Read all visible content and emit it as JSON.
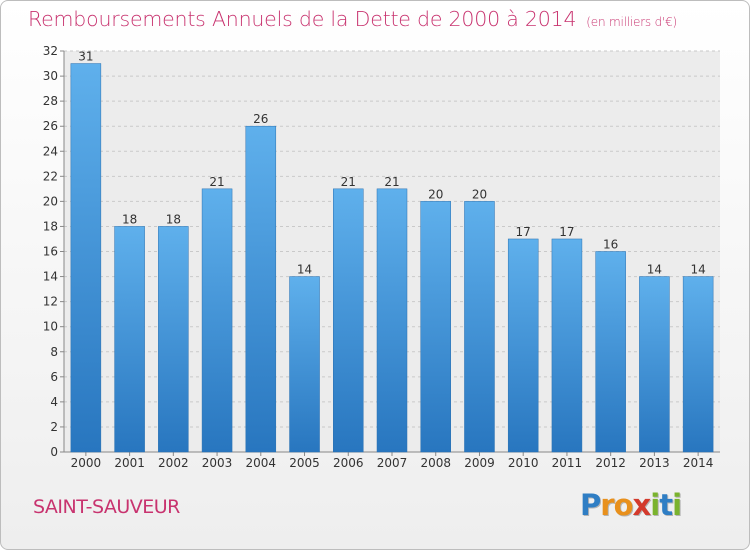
{
  "chart_data": {
    "type": "bar",
    "title": "Remboursements Annuels de la Dette de 2000 à 2014",
    "unit_note": "(en milliers d'€)",
    "categories": [
      "2000",
      "2001",
      "2002",
      "2003",
      "2004",
      "2005",
      "2006",
      "2007",
      "2008",
      "2009",
      "2010",
      "2011",
      "2012",
      "2013",
      "2014"
    ],
    "values": [
      31,
      18,
      18,
      21,
      26,
      14,
      21,
      21,
      20,
      20,
      17,
      17,
      16,
      14,
      14
    ],
    "ylim": [
      0,
      32
    ],
    "yticks": [
      0,
      2,
      4,
      6,
      8,
      10,
      12,
      14,
      16,
      18,
      20,
      22,
      24,
      26,
      28,
      30,
      32
    ],
    "grid": true,
    "bar_color": "#3d8fd6"
  },
  "commune": "SAINT-SAUVEUR",
  "logo": {
    "letters": [
      "P",
      "r",
      "o",
      "x",
      "i",
      "t",
      "i"
    ],
    "colors": [
      "#2f7ec4",
      "#e8901c",
      "#e8901c",
      "#d33a2c",
      "#7ab32e",
      "#2f7ec4",
      "#7ab32e"
    ]
  }
}
